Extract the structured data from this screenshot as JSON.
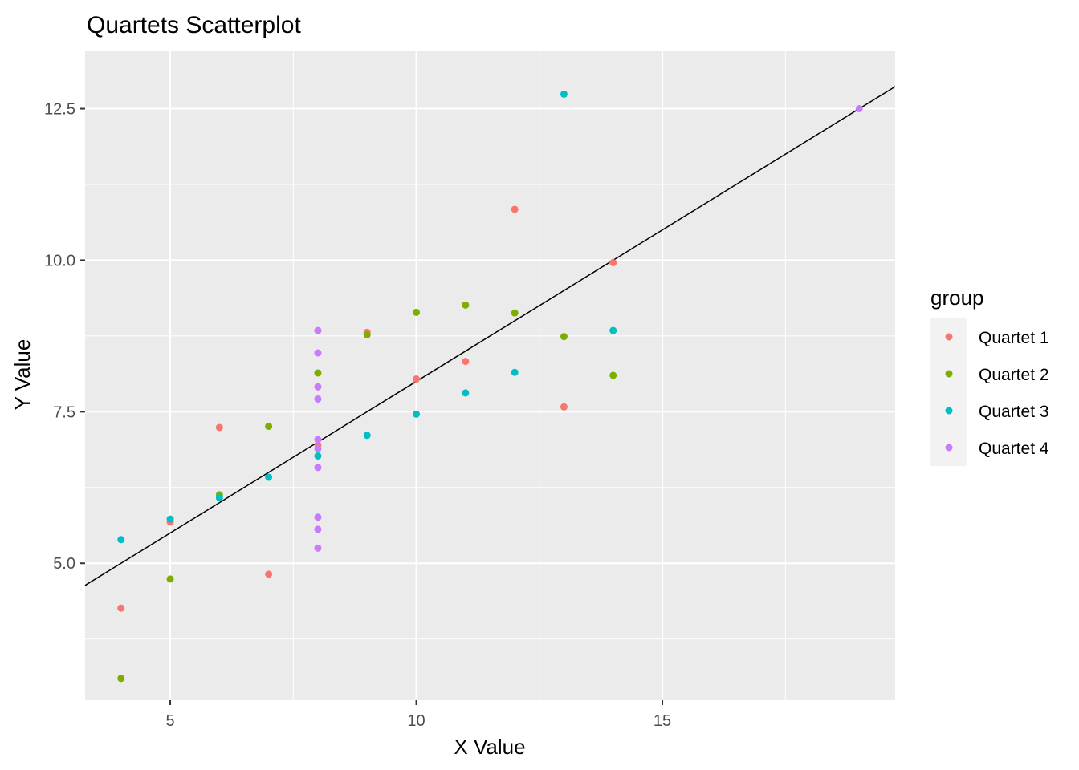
{
  "chart_data": {
    "type": "scatter",
    "title": "Quartets Scatterplot",
    "xlabel": "X Value",
    "ylabel": "Y Value",
    "xlim": [
      3.27,
      19.73
    ],
    "ylim": [
      2.74,
      13.46
    ],
    "x_ticks": [
      5,
      10,
      15
    ],
    "x_tick_labels": [
      "5",
      "10",
      "15"
    ],
    "y_ticks": [
      5.0,
      7.5,
      10.0,
      12.5
    ],
    "y_tick_labels": [
      "5.0",
      "7.5",
      "10.0",
      "12.5"
    ],
    "x_minor_ticks": [
      7.5,
      12.5,
      17.5
    ],
    "y_minor_ticks": [
      3.75,
      6.25,
      8.75,
      11.25
    ],
    "panel_background": "#ebebeb",
    "grid": true,
    "legend": {
      "title": "group",
      "position": "right",
      "entries": [
        "Quartet 1",
        "Quartet 2",
        "Quartet 3",
        "Quartet 4"
      ]
    },
    "series": [
      {
        "name": "Quartet 1",
        "color": "#f8766d",
        "points": [
          [
            10,
            8.04
          ],
          [
            8,
            6.95
          ],
          [
            13,
            7.58
          ],
          [
            9,
            8.81
          ],
          [
            11,
            8.33
          ],
          [
            14,
            9.96
          ],
          [
            6,
            7.24
          ],
          [
            4,
            4.26
          ],
          [
            12,
            10.84
          ],
          [
            7,
            4.82
          ],
          [
            5,
            5.68
          ]
        ]
      },
      {
        "name": "Quartet 2",
        "color": "#7cae00",
        "points": [
          [
            10,
            9.14
          ],
          [
            8,
            8.14
          ],
          [
            13,
            8.74
          ],
          [
            9,
            8.77
          ],
          [
            11,
            9.26
          ],
          [
            14,
            8.1
          ],
          [
            6,
            6.13
          ],
          [
            4,
            3.1
          ],
          [
            12,
            9.13
          ],
          [
            7,
            7.26
          ],
          [
            5,
            4.74
          ]
        ]
      },
      {
        "name": "Quartet 3",
        "color": "#00bfc4",
        "points": [
          [
            10,
            7.46
          ],
          [
            8,
            6.77
          ],
          [
            13,
            12.74
          ],
          [
            9,
            7.11
          ],
          [
            11,
            7.81
          ],
          [
            14,
            8.84
          ],
          [
            6,
            6.08
          ],
          [
            4,
            5.39
          ],
          [
            12,
            8.15
          ],
          [
            7,
            6.42
          ],
          [
            5,
            5.73
          ]
        ]
      },
      {
        "name": "Quartet 4",
        "color": "#c77cff",
        "points": [
          [
            8,
            6.58
          ],
          [
            8,
            5.76
          ],
          [
            8,
            7.71
          ],
          [
            8,
            8.84
          ],
          [
            8,
            8.47
          ],
          [
            8,
            7.04
          ],
          [
            8,
            5.25
          ],
          [
            19,
            12.5
          ],
          [
            8,
            5.56
          ],
          [
            8,
            7.91
          ],
          [
            8,
            6.89
          ]
        ]
      }
    ],
    "reference_line": {
      "intercept": 3.0,
      "slope": 0.5,
      "color": "#000000"
    }
  }
}
